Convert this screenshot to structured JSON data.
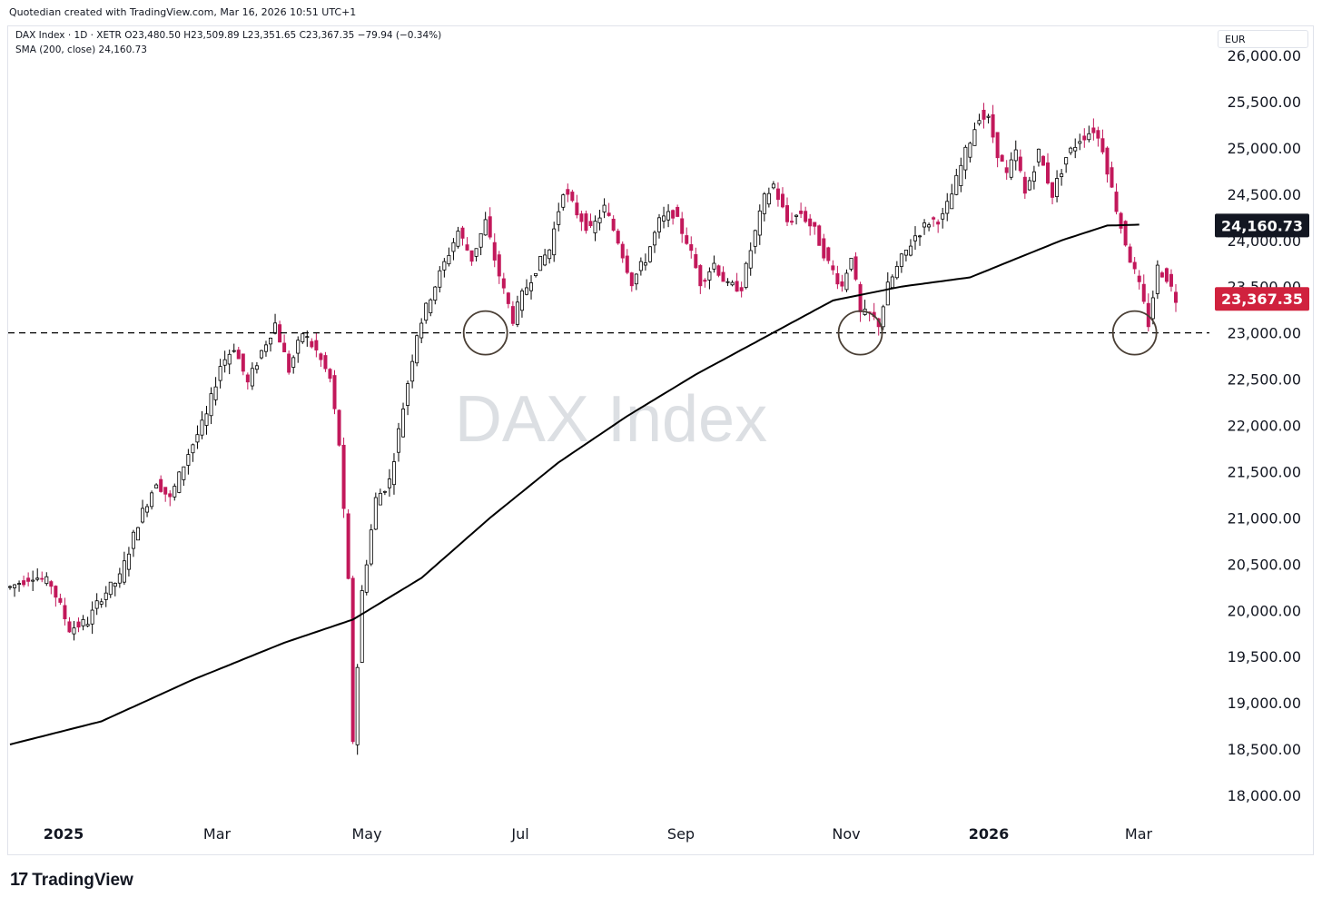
{
  "header": {
    "caption": "Quotedian created with TradingView.com, Mar 16, 2026 10:51 UTC+1"
  },
  "legend": {
    "symbol_line": "DAX Index · 1D · XETR",
    "open": "O23,480.50",
    "high": "H23,509.89",
    "low": "L23,351.65",
    "close": "C23,367.35",
    "change": "−79.94 (−0.34%)",
    "sma_line": "SMA (200, close)",
    "sma_value": "24,160.73"
  },
  "currency_label": "EUR",
  "watermark": "DAX Index",
  "footer": {
    "logo_text": "TradingView",
    "logo_mark": "17"
  },
  "colors": {
    "up_candle": "#000000",
    "down_candle": "#c2185b",
    "sma_line": "#000000",
    "last_price_badge": "#d0223e",
    "sma_badge": "#131722",
    "watermark": "#dcdfe3",
    "grid_text": "#131722"
  },
  "chart_data": {
    "type": "candlestick",
    "title": "DAX Index · 1D · XETR",
    "x_labels": [
      "2025",
      "Mar",
      "May",
      "Jul",
      "Sep",
      "Nov",
      "2026",
      "Mar"
    ],
    "y_ticks": [
      "26,000.00",
      "25,500.00",
      "25,000.00",
      "24,500.00",
      "24,000.00",
      "23,500.00",
      "23,000.00",
      "22,500.00",
      "22,000.00",
      "21,500.00",
      "21,000.00",
      "20,500.00",
      "20,000.00",
      "19,500.00",
      "19,000.00",
      "18,500.00",
      "18,000.00"
    ],
    "ylim": [
      17750,
      26080
    ],
    "last_price": {
      "label": "23,367.35",
      "value": 23367.35
    },
    "sma_badge": {
      "label": "24,160.73",
      "value": 24160.73
    },
    "support_level": {
      "value": 23000,
      "style": "dashed"
    },
    "circled_touches": [
      {
        "date": "Jun 2025",
        "value": 23000
      },
      {
        "date": "Nov 2025",
        "value": 23000
      },
      {
        "date": "Mar 2026",
        "value": 23000
      }
    ],
    "price_path": [
      [
        0,
        20250
      ],
      [
        5,
        20380
      ],
      [
        9,
        20280
      ],
      [
        13,
        19800
      ],
      [
        17,
        19880
      ],
      [
        20,
        20150
      ],
      [
        24,
        20350
      ],
      [
        28,
        20950
      ],
      [
        32,
        21400
      ],
      [
        35,
        21200
      ],
      [
        39,
        21700
      ],
      [
        43,
        22100
      ],
      [
        46,
        22650
      ],
      [
        49,
        22850
      ],
      [
        52,
        22450
      ],
      [
        55,
        22800
      ],
      [
        58,
        23100
      ],
      [
        61,
        22600
      ],
      [
        64,
        23000
      ],
      [
        67,
        22800
      ],
      [
        70,
        22500
      ],
      [
        72,
        21800
      ],
      [
        74,
        20300
      ],
      [
        75,
        18600
      ],
      [
        77,
        20200
      ],
      [
        80,
        21200
      ],
      [
        83,
        21400
      ],
      [
        86,
        22200
      ],
      [
        89,
        23000
      ],
      [
        92,
        23400
      ],
      [
        95,
        23750
      ],
      [
        98,
        24100
      ],
      [
        101,
        23800
      ],
      [
        104,
        24200
      ],
      [
        106,
        23800
      ],
      [
        108,
        23450
      ],
      [
        110,
        23150
      ],
      [
        112,
        23400
      ],
      [
        115,
        23700
      ],
      [
        118,
        23900
      ],
      [
        121,
        24550
      ],
      [
        124,
        24300
      ],
      [
        127,
        24100
      ],
      [
        130,
        24350
      ],
      [
        133,
        24000
      ],
      [
        136,
        23550
      ],
      [
        139,
        23800
      ],
      [
        142,
        24200
      ],
      [
        145,
        24300
      ],
      [
        148,
        24000
      ],
      [
        151,
        23550
      ],
      [
        154,
        23750
      ],
      [
        157,
        23500
      ],
      [
        160,
        23500
      ],
      [
        162,
        23900
      ],
      [
        165,
        24450
      ],
      [
        167,
        24600
      ],
      [
        170,
        24200
      ],
      [
        173,
        24300
      ],
      [
        176,
        24100
      ],
      [
        179,
        23750
      ],
      [
        182,
        23500
      ],
      [
        184,
        23850
      ],
      [
        186,
        23200
      ],
      [
        188,
        23200
      ],
      [
        190,
        23100
      ],
      [
        192,
        23500
      ],
      [
        195,
        23800
      ],
      [
        198,
        24050
      ],
      [
        201,
        24200
      ],
      [
        204,
        24250
      ],
      [
        206,
        24500
      ],
      [
        209,
        24950
      ],
      [
        212,
        25350
      ],
      [
        214,
        25300
      ],
      [
        216,
        24950
      ],
      [
        218,
        24700
      ],
      [
        220,
        24950
      ],
      [
        222,
        24500
      ],
      [
        225,
        24950
      ],
      [
        228,
        24500
      ],
      [
        231,
        24900
      ],
      [
        234,
        25100
      ],
      [
        237,
        25200
      ],
      [
        239,
        25000
      ],
      [
        241,
        24550
      ],
      [
        243,
        24150
      ],
      [
        245,
        23800
      ],
      [
        247,
        23500
      ],
      [
        249,
        23100
      ],
      [
        251,
        23700
      ],
      [
        253,
        23600
      ],
      [
        255,
        23367
      ]
    ],
    "sma_path": [
      [
        0,
        18550
      ],
      [
        20,
        18800
      ],
      [
        40,
        19250
      ],
      [
        60,
        19650
      ],
      [
        75,
        19900
      ],
      [
        90,
        20350
      ],
      [
        105,
        21000
      ],
      [
        120,
        21600
      ],
      [
        135,
        22100
      ],
      [
        150,
        22550
      ],
      [
        165,
        22950
      ],
      [
        180,
        23350
      ],
      [
        195,
        23500
      ],
      [
        210,
        23600
      ],
      [
        220,
        23800
      ],
      [
        230,
        24000
      ],
      [
        240,
        24160
      ],
      [
        247,
        24170
      ]
    ]
  }
}
